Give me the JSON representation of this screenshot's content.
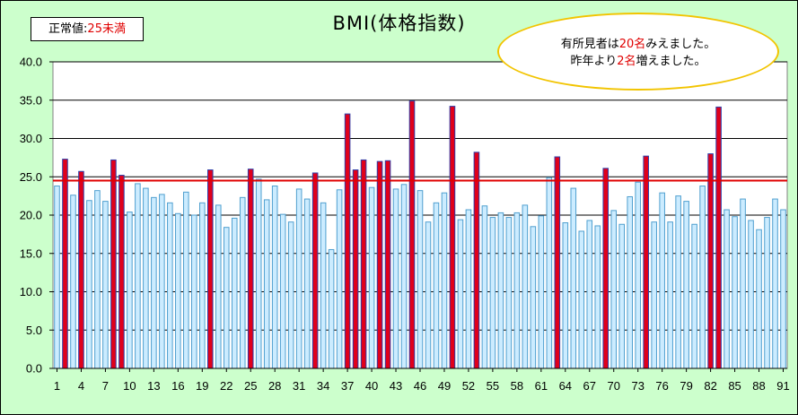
{
  "legend": {
    "prefix": "正常値:",
    "value": "25未満"
  },
  "note": {
    "line1_a": "有所見者は",
    "line1_b": "20名",
    "line1_c": "みえました。",
    "line2_a": "昨年より",
    "line2_b": "2名",
    "line2_c": "増えました。"
  },
  "colors": {
    "background": "#ccffcc",
    "normal_bar": "#ccecff",
    "normal_bar_edge": "#4f9fcf",
    "over_bar": "#e0001b",
    "over_bar_edge": "#2d3da8",
    "threshold_line": "#e00000",
    "note_border": "#f2c400"
  },
  "chart_data": {
    "type": "bar",
    "title": "BMI(体格指数)",
    "xlabel": "",
    "ylabel": "",
    "ylim": [
      0,
      40
    ],
    "yticks": [
      "0.0",
      "5.0",
      "10.0",
      "15.0",
      "20.0",
      "25.0",
      "30.0",
      "35.0",
      "40.0"
    ],
    "xtick_labels": [
      "1",
      "4",
      "7",
      "10",
      "13",
      "16",
      "19",
      "22",
      "25",
      "28",
      "31",
      "34",
      "37",
      "40",
      "43",
      "46",
      "49",
      "52",
      "55",
      "58",
      "61",
      "64",
      "67",
      "70",
      "73",
      "76",
      "79",
      "82",
      "85",
      "88",
      "91"
    ],
    "threshold": 24.5,
    "grid": "horizontal",
    "categories": [
      1,
      2,
      3,
      4,
      5,
      6,
      7,
      8,
      9,
      10,
      11,
      12,
      13,
      14,
      15,
      16,
      17,
      18,
      19,
      20,
      21,
      22,
      23,
      24,
      25,
      26,
      27,
      28,
      29,
      30,
      31,
      32,
      33,
      34,
      35,
      36,
      37,
      38,
      39,
      40,
      41,
      42,
      43,
      44,
      45,
      46,
      47,
      48,
      49,
      50,
      51,
      52,
      53,
      54,
      55,
      56,
      57,
      58,
      59,
      60,
      61,
      62,
      63,
      64,
      65,
      66,
      67,
      68,
      69,
      70,
      71,
      72,
      73,
      74,
      75,
      76,
      77,
      78,
      79,
      80,
      81,
      82,
      83,
      84,
      85,
      86,
      87,
      88,
      89,
      90,
      91
    ],
    "values": [
      23.8,
      27.3,
      22.6,
      25.7,
      21.9,
      23.2,
      21.8,
      27.2,
      25.2,
      20.4,
      24.1,
      23.5,
      22.3,
      22.7,
      21.6,
      20.2,
      23.0,
      20.0,
      21.6,
      25.9,
      21.3,
      18.4,
      19.6,
      22.3,
      26.0,
      24.7,
      22.0,
      23.8,
      20.1,
      19.1,
      23.4,
      22.1,
      25.5,
      21.6,
      15.5,
      23.3,
      33.2,
      25.9,
      27.2,
      23.6,
      27.0,
      27.1,
      23.4,
      24.0,
      34.9,
      23.2,
      19.1,
      21.6,
      22.9,
      34.2,
      19.4,
      20.7,
      28.2,
      21.2,
      19.7,
      20.3,
      19.7,
      20.3,
      21.3,
      18.5,
      19.9,
      24.9,
      27.6,
      19.0,
      23.5,
      17.9,
      19.3,
      18.6,
      26.1,
      20.6,
      18.8,
      22.4,
      24.3,
      27.7,
      19.1,
      22.9,
      19.1,
      22.5,
      21.8,
      18.8,
      23.8,
      28.0,
      34.1,
      20.7,
      19.8,
      22.1,
      19.3,
      18.1,
      19.7,
      22.1,
      20.7
    ]
  }
}
